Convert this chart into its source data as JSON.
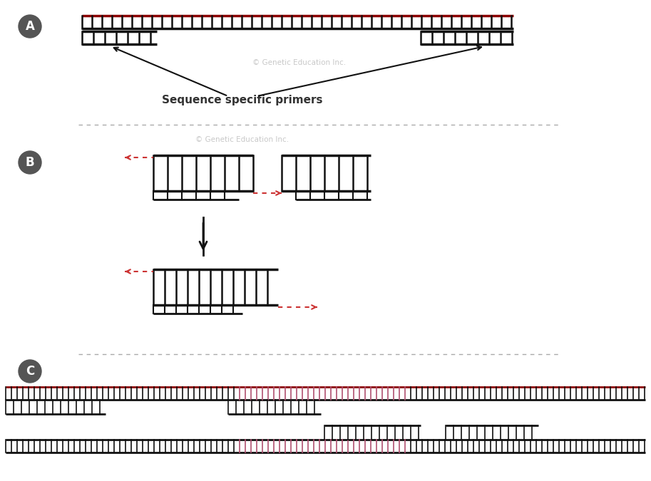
{
  "bg_color": "#ffffff",
  "dna_color": "#111111",
  "red_strand_color": "#8B0000",
  "pink_color": "#B05070",
  "arrow_color": "#CC3333",
  "badge_color": "#555555",
  "badge_text_color": "#ffffff",
  "dash_color": "#aaaaaa",
  "text_color": "#333333",
  "watermark": "© Genetic Education Inc.",
  "label_A": "A",
  "label_B": "B",
  "label_C": "C",
  "primer_label": "Sequence specific primers",
  "fig_w": 9.13,
  "fig_h": 6.75,
  "dpi": 100
}
